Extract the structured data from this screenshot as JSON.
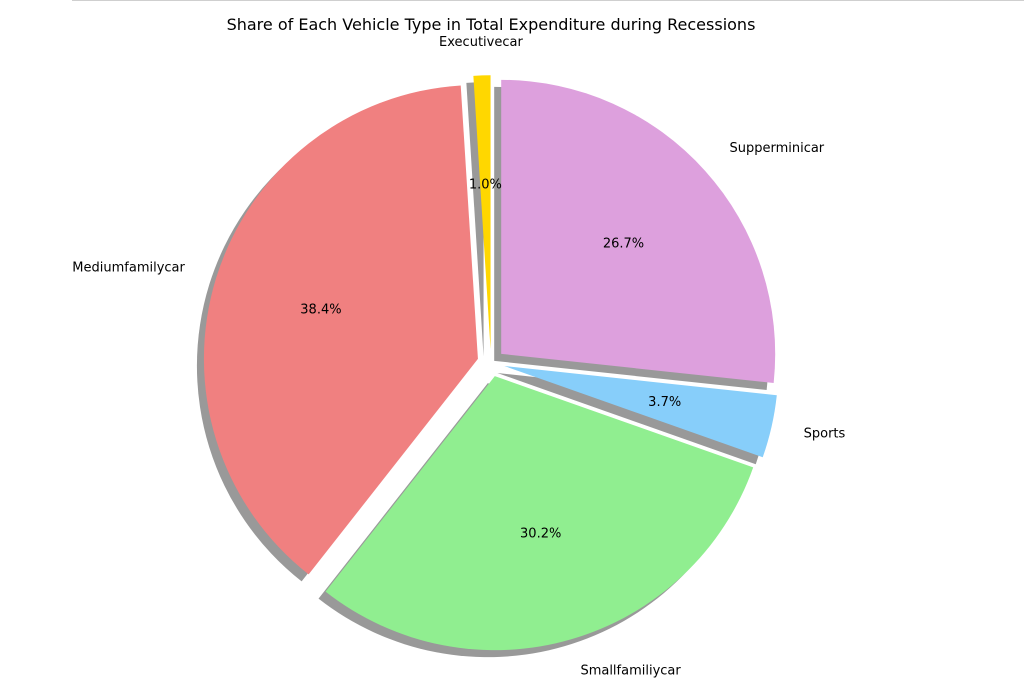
{
  "chart_data": {
    "type": "pie",
    "title": "Share of Each Vehicle Type in Total Expenditure during Recessions",
    "start_angle_deg": 90,
    "direction": "counterclockwise",
    "shadow": true,
    "slices": [
      {
        "label": "Executivecar",
        "value": 1.0,
        "pct_label": "1.0%",
        "color": "#ffd700",
        "exploded": true
      },
      {
        "label": "Mediumfamilycar",
        "value": 38.4,
        "pct_label": "38.4%",
        "color": "#f08080",
        "exploded": true
      },
      {
        "label": "Smallfamiliycar",
        "value": 30.2,
        "pct_label": "30.2%",
        "color": "#90ee90",
        "exploded": true
      },
      {
        "label": "Sports",
        "value": 3.7,
        "pct_label": "3.7%",
        "color": "#87cefa",
        "exploded": true
      },
      {
        "label": "Supperminicar",
        "value": 26.7,
        "pct_label": "26.7%",
        "color": "#dda0dd",
        "exploded": true
      }
    ]
  }
}
